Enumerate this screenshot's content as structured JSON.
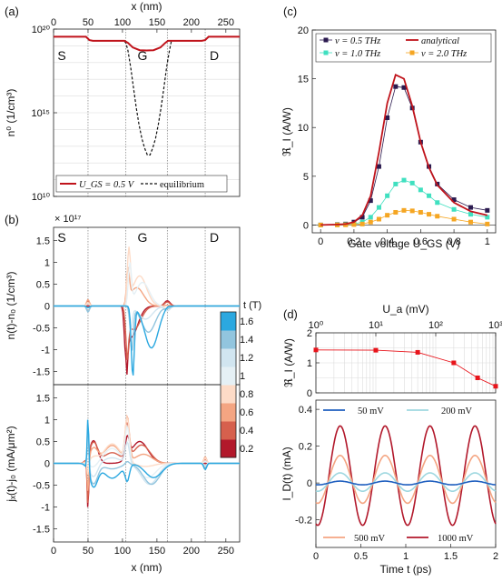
{
  "chart_data": [
    {
      "panel": "(a)",
      "type": "line",
      "xlabel": "x (nm)",
      "ylabel": "n⁰ (1/cm³)",
      "xlim": [
        0,
        270
      ],
      "x_ticks": [
        "0",
        "50",
        "100",
        "150",
        "200",
        "250"
      ],
      "ylog": true,
      "ylim": [
        10000000000.0,
        1e+20
      ],
      "y_ticks": [
        "10¹⁰",
        "10¹⁵",
        "10²⁰"
      ],
      "region_labels": [
        "S",
        "G",
        "D"
      ],
      "legend": [
        "U_GS = 0.5 V",
        "equilibrium"
      ],
      "series": [
        {
          "name": "U_GS = 0.5 V",
          "x": [
            0,
            47,
            52,
            57,
            103,
            108,
            115,
            125,
            135,
            145,
            155,
            162,
            166,
            171,
            215,
            220,
            225,
            270
          ],
          "y": [
            3.5e+19,
            3.5e+19,
            2.2e+19,
            2e+19,
            2e+19,
            1.5e+19,
            8e+18,
            5.5e+18,
            5.3e+18,
            5.5e+18,
            8e+18,
            1.5e+19,
            2e+19,
            2e+19,
            2e+19,
            2.2e+19,
            3.5e+19,
            3.5e+19
          ]
        },
        {
          "name": "equilibrium",
          "x": [
            0,
            47,
            52,
            57,
            102,
            105,
            108,
            112,
            116,
            120,
            124,
            128,
            132,
            136,
            140,
            144,
            148,
            152,
            156,
            160,
            164,
            168,
            171,
            215,
            220,
            225,
            270
          ],
          "y": [
            3.5e+19,
            3.5e+19,
            2.2e+19,
            2e+19,
            2e+19,
            1.5e+19,
            5e+18,
            5e+17,
            3e+16,
            2000000000000000.0,
            200000000000000.0,
            30000000000000.0,
            8000000000000.0,
            3000000000000.0,
            3000000000000.0,
            8000000000000.0,
            30000000000000.0,
            200000000000000.0,
            2000000000000000.0,
            3e+16,
            5e+17,
            5e+18,
            2e+19,
            2e+19,
            2.2e+19,
            3.5e+19,
            3.5e+19
          ]
        }
      ]
    },
    {
      "panel": "(b) top",
      "type": "line",
      "ylabel": "n(t)-n₀ (1/cm³)",
      "multiplier": "× 10¹⁷",
      "xlim": [
        0,
        270
      ],
      "ylim": [
        -1.8,
        1.8
      ],
      "y_ticks": [
        "-1.5",
        "-1",
        "-0.5",
        "0",
        "0.5",
        "1",
        "1.5"
      ],
      "region_labels": [
        "S",
        "G",
        "D"
      ],
      "colorbar": {
        "label": "t (T)",
        "ticks": [
          "0.2",
          "0.4",
          "0.6",
          "0.8",
          "1",
          "1.2",
          "1.4",
          "1.6"
        ]
      },
      "series": [
        {
          "name": "0.2",
          "color": "#b2182b",
          "peak": -1.2
        },
        {
          "name": "0.4",
          "color": "#d6604d",
          "peak": -0.9
        },
        {
          "name": "0.6",
          "color": "#f4a582",
          "peak": 0.7
        },
        {
          "name": "0.8",
          "color": "#fddbc7",
          "peak": 1.15
        },
        {
          "name": "1",
          "color": "#e5f0f5",
          "peak": 0.9
        },
        {
          "name": "1.2",
          "color": "#d1e5f0",
          "peak": -0.5
        },
        {
          "name": "1.4",
          "color": "#92c5de",
          "peak": -1.0
        },
        {
          "name": "1.6",
          "color": "#2ba8e0",
          "peak": -1.6
        }
      ]
    },
    {
      "panel": "(b) bottom",
      "type": "line",
      "xlabel": "x (nm)",
      "ylabel": "jₓ(t)-j₀ (mA/μm²)",
      "xlim": [
        0,
        270
      ],
      "x_ticks": [
        "0",
        "50",
        "100",
        "150",
        "200",
        "250"
      ],
      "ylim": [
        -1.8,
        1.8
      ],
      "y_ticks": [
        "-1.5",
        "-1",
        "-0.5",
        "0",
        "0.5",
        "1",
        "1.5"
      ]
    },
    {
      "panel": "(c)",
      "type": "line",
      "xlabel": "Gate voltage U_GS (V)",
      "ylabel": "ℜ_I (A/W)",
      "xlim": [
        -0.05,
        1.05
      ],
      "ylim": [
        -0.8,
        20
      ],
      "x_ticks": [
        "0",
        "0.2",
        "0.4",
        "0.6",
        "0.8",
        "1"
      ],
      "y_ticks": [
        "0",
        "5",
        "10",
        "15",
        "20"
      ],
      "legend": [
        "ν = 0.5 THz",
        "analytical",
        "ν = 1.0 THz",
        "ν = 2.0 THz"
      ],
      "x": [
        0,
        0.1,
        0.15,
        0.2,
        0.25,
        0.3,
        0.35,
        0.4,
        0.45,
        0.5,
        0.55,
        0.6,
        0.65,
        0.7,
        0.8,
        0.9,
        1.0
      ],
      "series": [
        {
          "name": "ν = 0.5 THz",
          "color": "#2b1a4f",
          "values": [
            0,
            0.05,
            0.1,
            0.3,
            0.8,
            2.5,
            6,
            11,
            14.2,
            14.1,
            12,
            8.5,
            6,
            4.2,
            2.6,
            1.8,
            1.5
          ]
        },
        {
          "name": "ν = 1.0 THz",
          "color": "#40e0c0",
          "values": [
            0,
            0.02,
            0.05,
            0.1,
            0.3,
            0.8,
            1.8,
            3.0,
            4.2,
            4.6,
            4.3,
            3.6,
            3.0,
            2.3,
            1.6,
            1.1,
            0.8
          ]
        },
        {
          "name": "ν = 2.0 THz",
          "color": "#f5a623",
          "values": [
            0,
            0.01,
            0.02,
            0.05,
            0.1,
            0.3,
            0.6,
            1.0,
            1.3,
            1.5,
            1.45,
            1.3,
            1.1,
            0.9,
            0.6,
            0.3,
            0.1
          ]
        },
        {
          "name": "analytical",
          "color": "#c0131b",
          "values": [
            0,
            0.05,
            0.1,
            0.3,
            1.0,
            3.0,
            7.5,
            12.5,
            15.4,
            15.0,
            12.2,
            8.5,
            5.9,
            4.1,
            2.3,
            1.4,
            1.0
          ]
        }
      ]
    },
    {
      "panel": "(d) top",
      "type": "line",
      "xlabel": "U_a (mV)",
      "ylabel": "ℜ_I (A/W)",
      "xlog": true,
      "xlim": [
        1,
        1000
      ],
      "x_ticks": [
        "10⁰",
        "10¹",
        "10²",
        "10³"
      ],
      "ylim": [
        0,
        2
      ],
      "y_ticks": [
        "0",
        "1",
        "2"
      ],
      "x": [
        1,
        10,
        50,
        200,
        500,
        1000
      ],
      "values": [
        1.43,
        1.42,
        1.35,
        1.0,
        0.5,
        0.22
      ]
    },
    {
      "panel": "(d) bottom",
      "type": "line",
      "xlabel": "Time t (ps)",
      "ylabel": "I_D(t) (mA)",
      "xlim": [
        0,
        2
      ],
      "ylim": [
        -0.35,
        0.45
      ],
      "x_ticks": [
        "0",
        "0.5",
        "1",
        "1.5",
        "2"
      ],
      "y_ticks": [
        "-0.2",
        "0",
        "0.2",
        "0.4"
      ],
      "period_ps": 0.5,
      "series": [
        {
          "name": "50 mV",
          "color": "#1f5fbf",
          "amplitude": 0.01,
          "offset": 0.0
        },
        {
          "name": "200 mV",
          "color": "#9fd8e0",
          "amplitude": 0.05,
          "offset": 0.005
        },
        {
          "name": "500 mV",
          "color": "#f4a582",
          "amplitude": 0.13,
          "offset": 0.02
        },
        {
          "name": "1000 mV",
          "color": "#b2182b",
          "amplitude": 0.27,
          "offset": 0.04
        }
      ]
    }
  ]
}
